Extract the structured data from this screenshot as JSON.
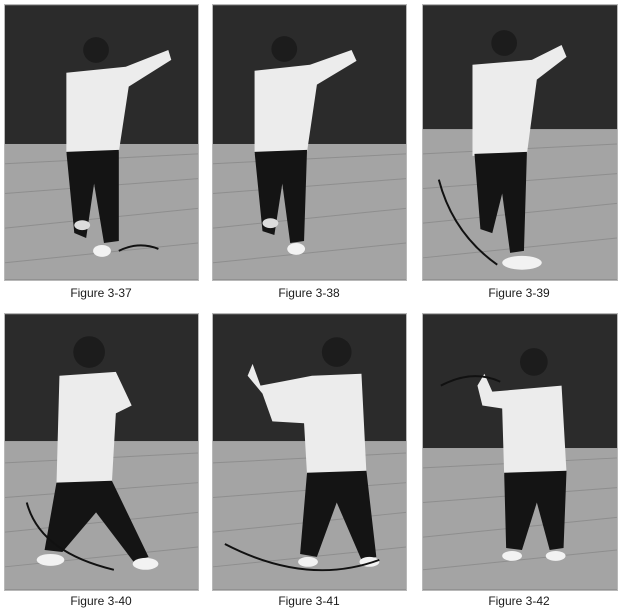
{
  "figures": [
    {
      "caption": "Figure 3-37",
      "pose": "facing-front-hands-raised",
      "motion_arrow": "arc-at-feet-left"
    },
    {
      "caption": "Figure 3-38",
      "pose": "facing-front-hands-raised",
      "motion_arrow": "none"
    },
    {
      "caption": "Figure 3-39",
      "pose": "turning-right-hands-raised",
      "motion_arrow": "arc-at-feet-left"
    },
    {
      "caption": "Figure 3-40",
      "pose": "facing-away-wide-stance",
      "motion_arrow": "arc-at-feet-left"
    },
    {
      "caption": "Figure 3-41",
      "pose": "facing-left-palm-out",
      "motion_arrow": "arc-at-feet-floor"
    },
    {
      "caption": "Figure 3-42",
      "pose": "facing-away-hand-up",
      "motion_arrow": "arc-overhead"
    }
  ],
  "colors": {
    "wall": "#2b2b2b",
    "floor": "#a4a4a4",
    "shirt": "#ececec",
    "pants": "#141414"
  }
}
